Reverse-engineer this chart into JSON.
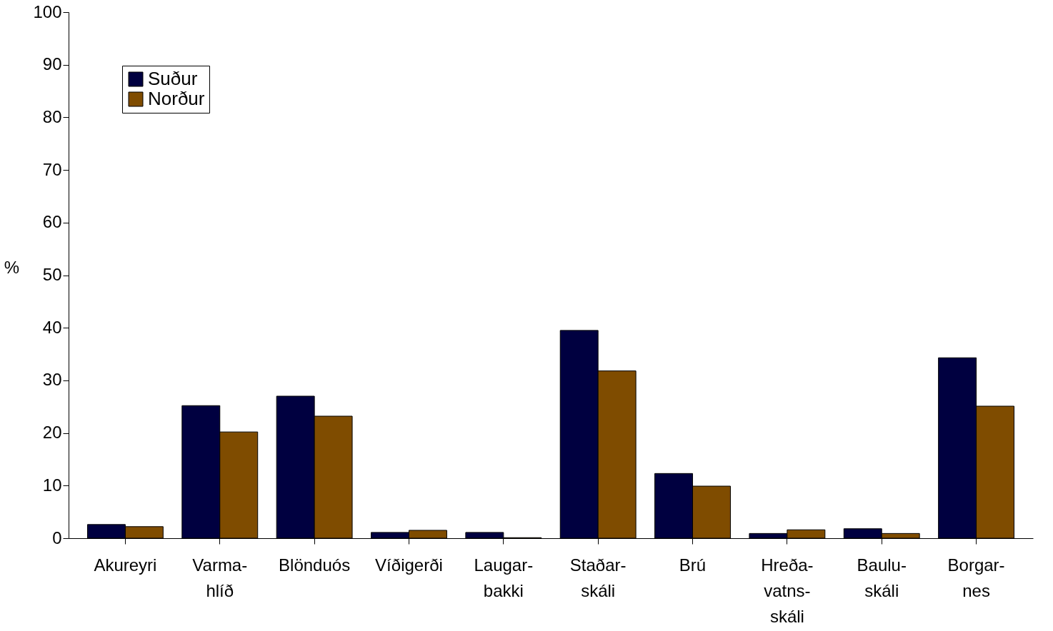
{
  "chart_data": {
    "type": "bar",
    "ylabel": "%",
    "categories": [
      "Akureyri",
      "Varma-\nhlíð",
      "Blönduós",
      "Víðigerði",
      "Laugar-\nbakki",
      "Staðar-\nskáli",
      "Brú",
      "Hreða-\nvatns-\nskáli",
      "Baulu-\nskáli",
      "Borgar-\nnes"
    ],
    "series": [
      {
        "name": "Suður",
        "color": "#000040",
        "values": [
          2.6,
          25.2,
          27.0,
          1.1,
          1.1,
          39.5,
          12.3,
          0.9,
          1.8,
          34.3
        ]
      },
      {
        "name": "Norður",
        "color": "#7f4c00",
        "values": [
          2.2,
          20.2,
          23.2,
          1.5,
          0.1,
          31.8,
          9.9,
          1.6,
          0.9,
          25.1
        ]
      }
    ],
    "ylim": [
      0,
      100
    ],
    "yticks": [
      0,
      10,
      20,
      30,
      40,
      50,
      60,
      70,
      80,
      90,
      100
    ],
    "grid": false,
    "legend": "top left"
  }
}
